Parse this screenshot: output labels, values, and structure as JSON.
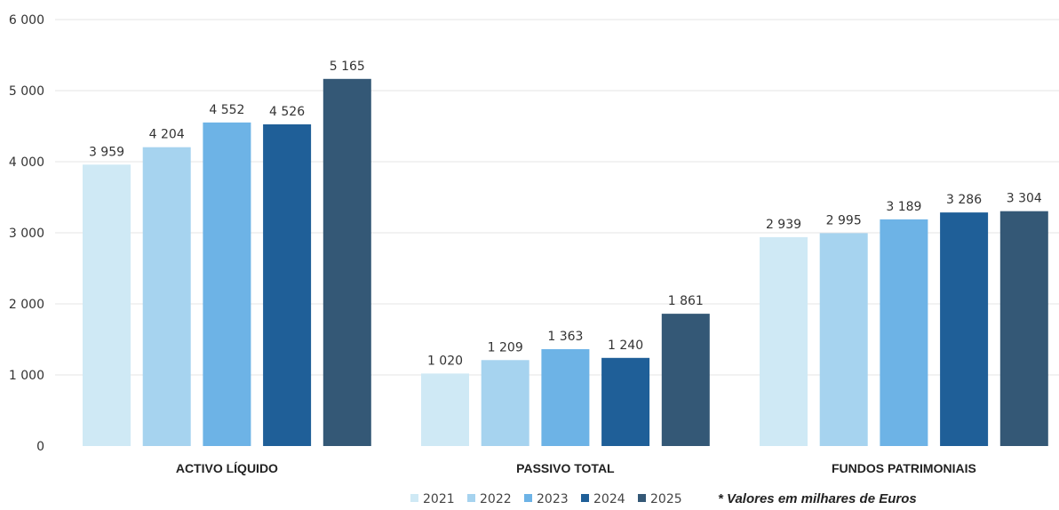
{
  "chart_data": {
    "type": "bar",
    "categories": [
      "ACTIVO LÍQUIDO",
      "PASSIVO TOTAL",
      "FUNDOS PATRIMONIAIS"
    ],
    "series": [
      {
        "name": "2021",
        "color": "#cfe9f5",
        "values": [
          3959,
          1020,
          2939
        ],
        "labels": [
          "3 959",
          "1 020",
          "2 939"
        ]
      },
      {
        "name": "2022",
        "color": "#a6d3ef",
        "values": [
          4204,
          1209,
          2995
        ],
        "labels": [
          "4 204",
          "1 209",
          "2 995"
        ]
      },
      {
        "name": "2023",
        "color": "#6db3e6",
        "values": [
          4552,
          1363,
          3189
        ],
        "labels": [
          "4 552",
          "1 363",
          "3 189"
        ]
      },
      {
        "name": "2024",
        "color": "#1f5f98",
        "values": [
          4526,
          1240,
          3286
        ],
        "labels": [
          "4 526",
          "1 240",
          "3 286"
        ]
      },
      {
        "name": "2025",
        "color": "#345876",
        "values": [
          5165,
          1861,
          3304
        ],
        "labels": [
          "5 165",
          "1 861",
          "3 304"
        ]
      }
    ],
    "yticks": [
      {
        "value": 0,
        "label": "0"
      },
      {
        "value": 1000,
        "label": "1 000"
      },
      {
        "value": 2000,
        "label": "2 000"
      },
      {
        "value": 3000,
        "label": "3 000"
      },
      {
        "value": 4000,
        "label": "4 000"
      },
      {
        "value": 5000,
        "label": "5 000"
      },
      {
        "value": 6000,
        "label": "6 000"
      }
    ],
    "ylim": [
      0,
      6000
    ],
    "grid": true,
    "legend_position": "bottom",
    "note": "* Valores em milhares de Euros"
  }
}
